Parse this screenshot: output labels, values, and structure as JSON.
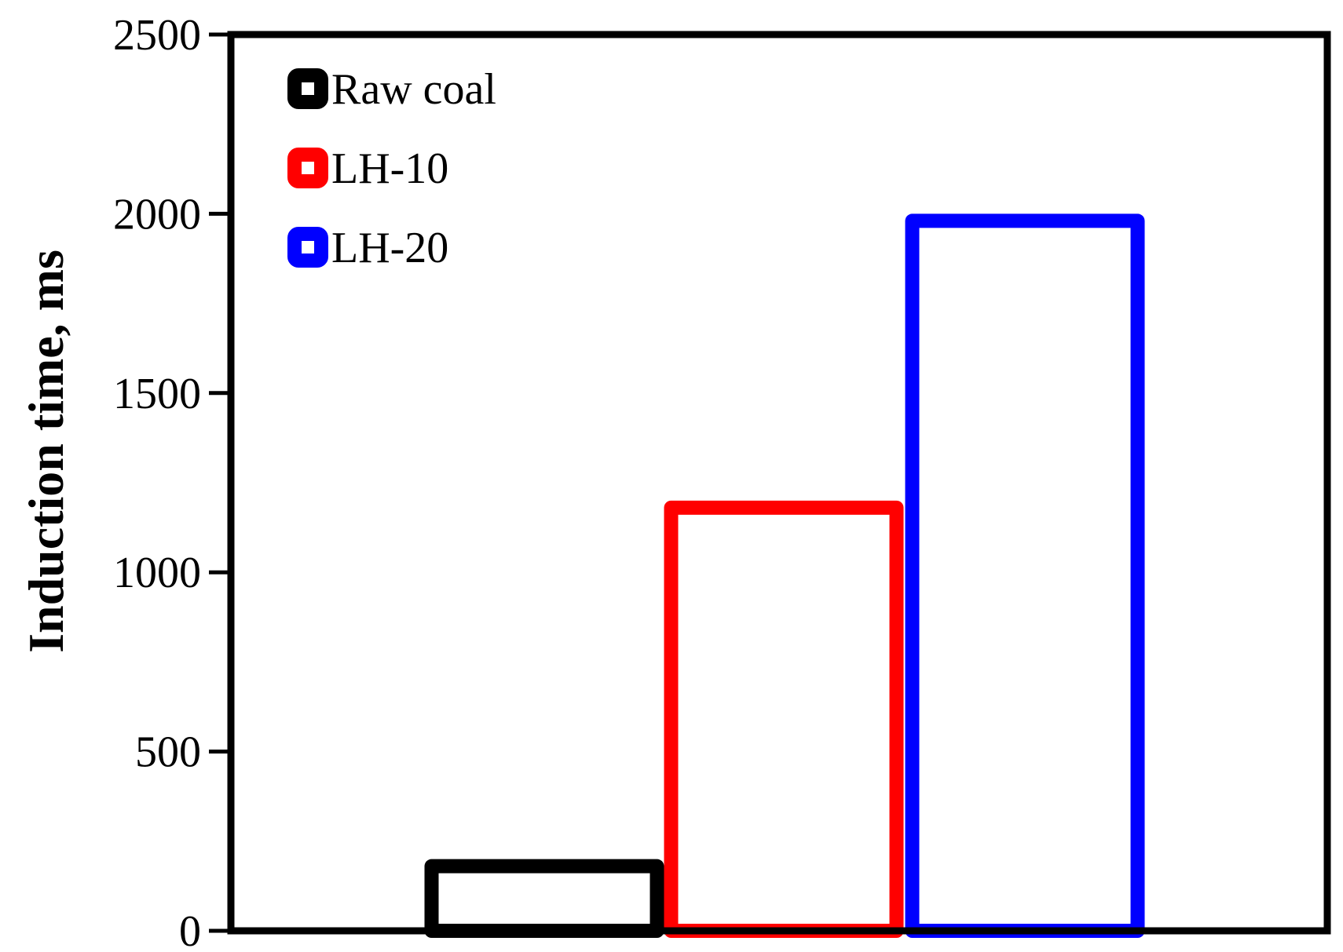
{
  "chart_data": {
    "type": "bar",
    "title": "",
    "xlabel": "",
    "ylabel": "Induction time, ms",
    "ylim": [
      0,
      2500
    ],
    "yticks": [
      0,
      500,
      1000,
      1500,
      2000,
      2500
    ],
    "grid": false,
    "legend_position": "top-left",
    "series": [
      {
        "name": "Raw coal",
        "value": 200,
        "color": "#000000"
      },
      {
        "name": "LH-10",
        "value": 1200,
        "color": "#ff0000"
      },
      {
        "name": "LH-20",
        "value": 2000,
        "color": "#0000ff"
      }
    ]
  }
}
